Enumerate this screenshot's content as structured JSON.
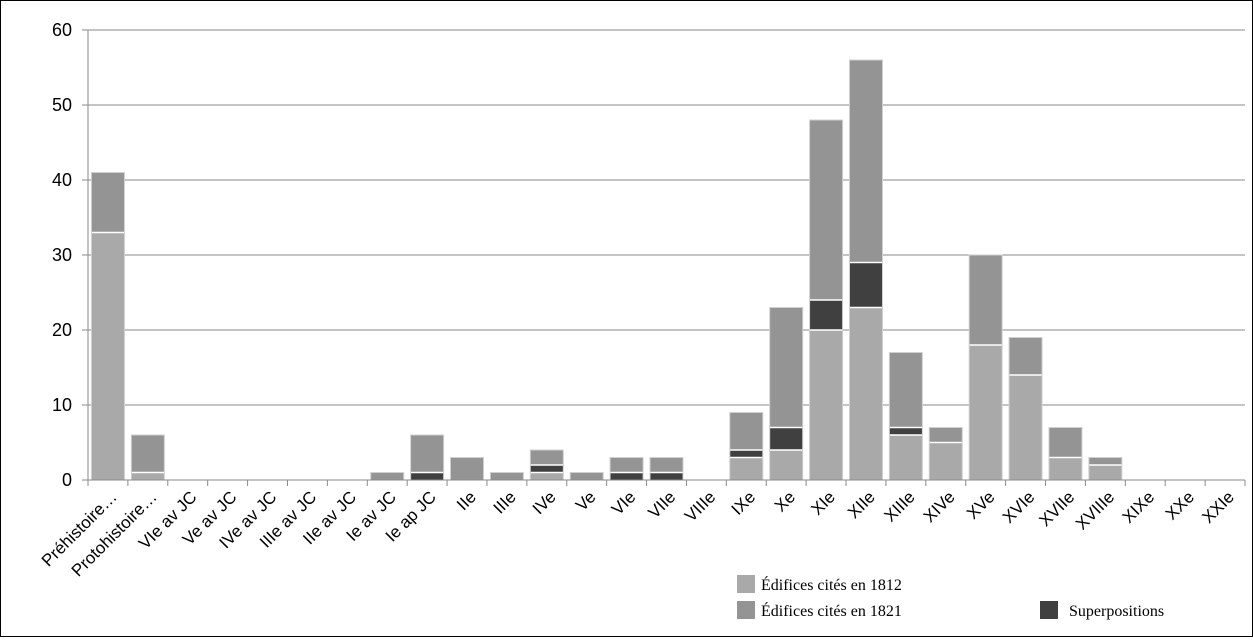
{
  "chart_data": {
    "type": "bar",
    "stacked": true,
    "categories": [
      "Préhistoire…",
      "Protohistoire…",
      "VIe av JC",
      "Ve av JC",
      "IVe av JC",
      "IIIe av JC",
      "IIe av JC",
      "Ie av JC",
      "Ie ap JC",
      "IIe",
      "IIIe",
      "IVe",
      "Ve",
      "VIe",
      "VIIe",
      "VIIIe",
      "IXe",
      "Xe",
      "XIe",
      "XIIe",
      "XIIIe",
      "XIVe",
      "XVe",
      "XVIe",
      "XVIIe",
      "XVIIIe",
      "XIXe",
      "XXe",
      "XXIe"
    ],
    "series": [
      {
        "name": "Édifices cités en 1812",
        "color": "#a9a9a9",
        "values": [
          33,
          1,
          0,
          0,
          0,
          0,
          0,
          0,
          0,
          0,
          0,
          1,
          0,
          0,
          0,
          0,
          3,
          4,
          20,
          23,
          6,
          5,
          18,
          14,
          3,
          2,
          0,
          0,
          0
        ]
      },
      {
        "name": "Superpositions",
        "color": "#404040",
        "values": [
          0,
          0,
          0,
          0,
          0,
          0,
          0,
          0,
          1,
          0,
          0,
          1,
          0,
          1,
          1,
          0,
          1,
          3,
          4,
          6,
          1,
          0,
          0,
          0,
          0,
          0,
          0,
          0,
          0
        ]
      },
      {
        "name": "Édifices cités en 1821",
        "color": "#949494",
        "values": [
          8,
          5,
          0,
          0,
          0,
          0,
          0,
          1,
          5,
          3,
          1,
          2,
          1,
          2,
          2,
          0,
          5,
          16,
          24,
          27,
          10,
          2,
          12,
          5,
          4,
          1,
          0,
          0,
          0
        ]
      }
    ],
    "ylim": [
      0,
      60
    ],
    "yticks": [
      "0",
      "10",
      "20",
      "30",
      "40",
      "50",
      "60"
    ],
    "grid": true,
    "legend_placement": "bottom-right",
    "legend": {
      "entries": [
        "Édifices cités en 1812",
        "Édifices cités en 1821",
        "Superpositions"
      ]
    }
  }
}
